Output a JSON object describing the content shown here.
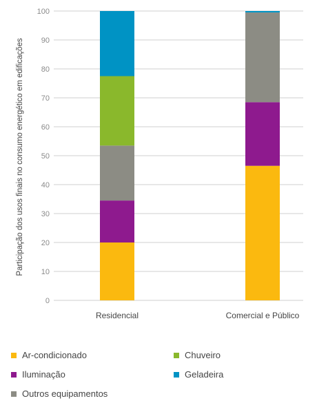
{
  "chart_data": {
    "type": "bar",
    "stacked": true,
    "ylabel": "Participação dos usos finais no consumo energético em edificações",
    "xlabel": "",
    "ylim": [
      0,
      100
    ],
    "yticks": [
      0,
      10,
      20,
      30,
      40,
      50,
      60,
      70,
      80,
      90,
      100
    ],
    "grid": true,
    "legend_position": "bottom",
    "categories": [
      "Residencial",
      "Comercial e Público"
    ],
    "series": [
      {
        "name": "Ar-condicionado",
        "color": "#fbb90f",
        "values": [
          20,
          46.5
        ]
      },
      {
        "name": "Iluminação",
        "color": "#8e1a8e",
        "values": [
          14.5,
          22
        ]
      },
      {
        "name": "Outros equipamentos",
        "color": "#8c8c84",
        "values": [
          19,
          31
        ]
      },
      {
        "name": "Chuveiro",
        "color": "#8ab82c",
        "values": [
          24,
          0
        ]
      },
      {
        "name": "Geladeira",
        "color": "#0093c4",
        "values": [
          22.5,
          0.5
        ]
      }
    ]
  },
  "legend": [
    {
      "label": "Ar-condicionado",
      "color": "#fbb90f"
    },
    {
      "label": "Chuveiro",
      "color": "#8ab82c"
    },
    {
      "label": "Iluminação",
      "color": "#8e1a8e"
    },
    {
      "label": "Geladeira",
      "color": "#0093c4"
    },
    {
      "label": "Outros equipamentos",
      "color": "#8c8c84"
    }
  ]
}
